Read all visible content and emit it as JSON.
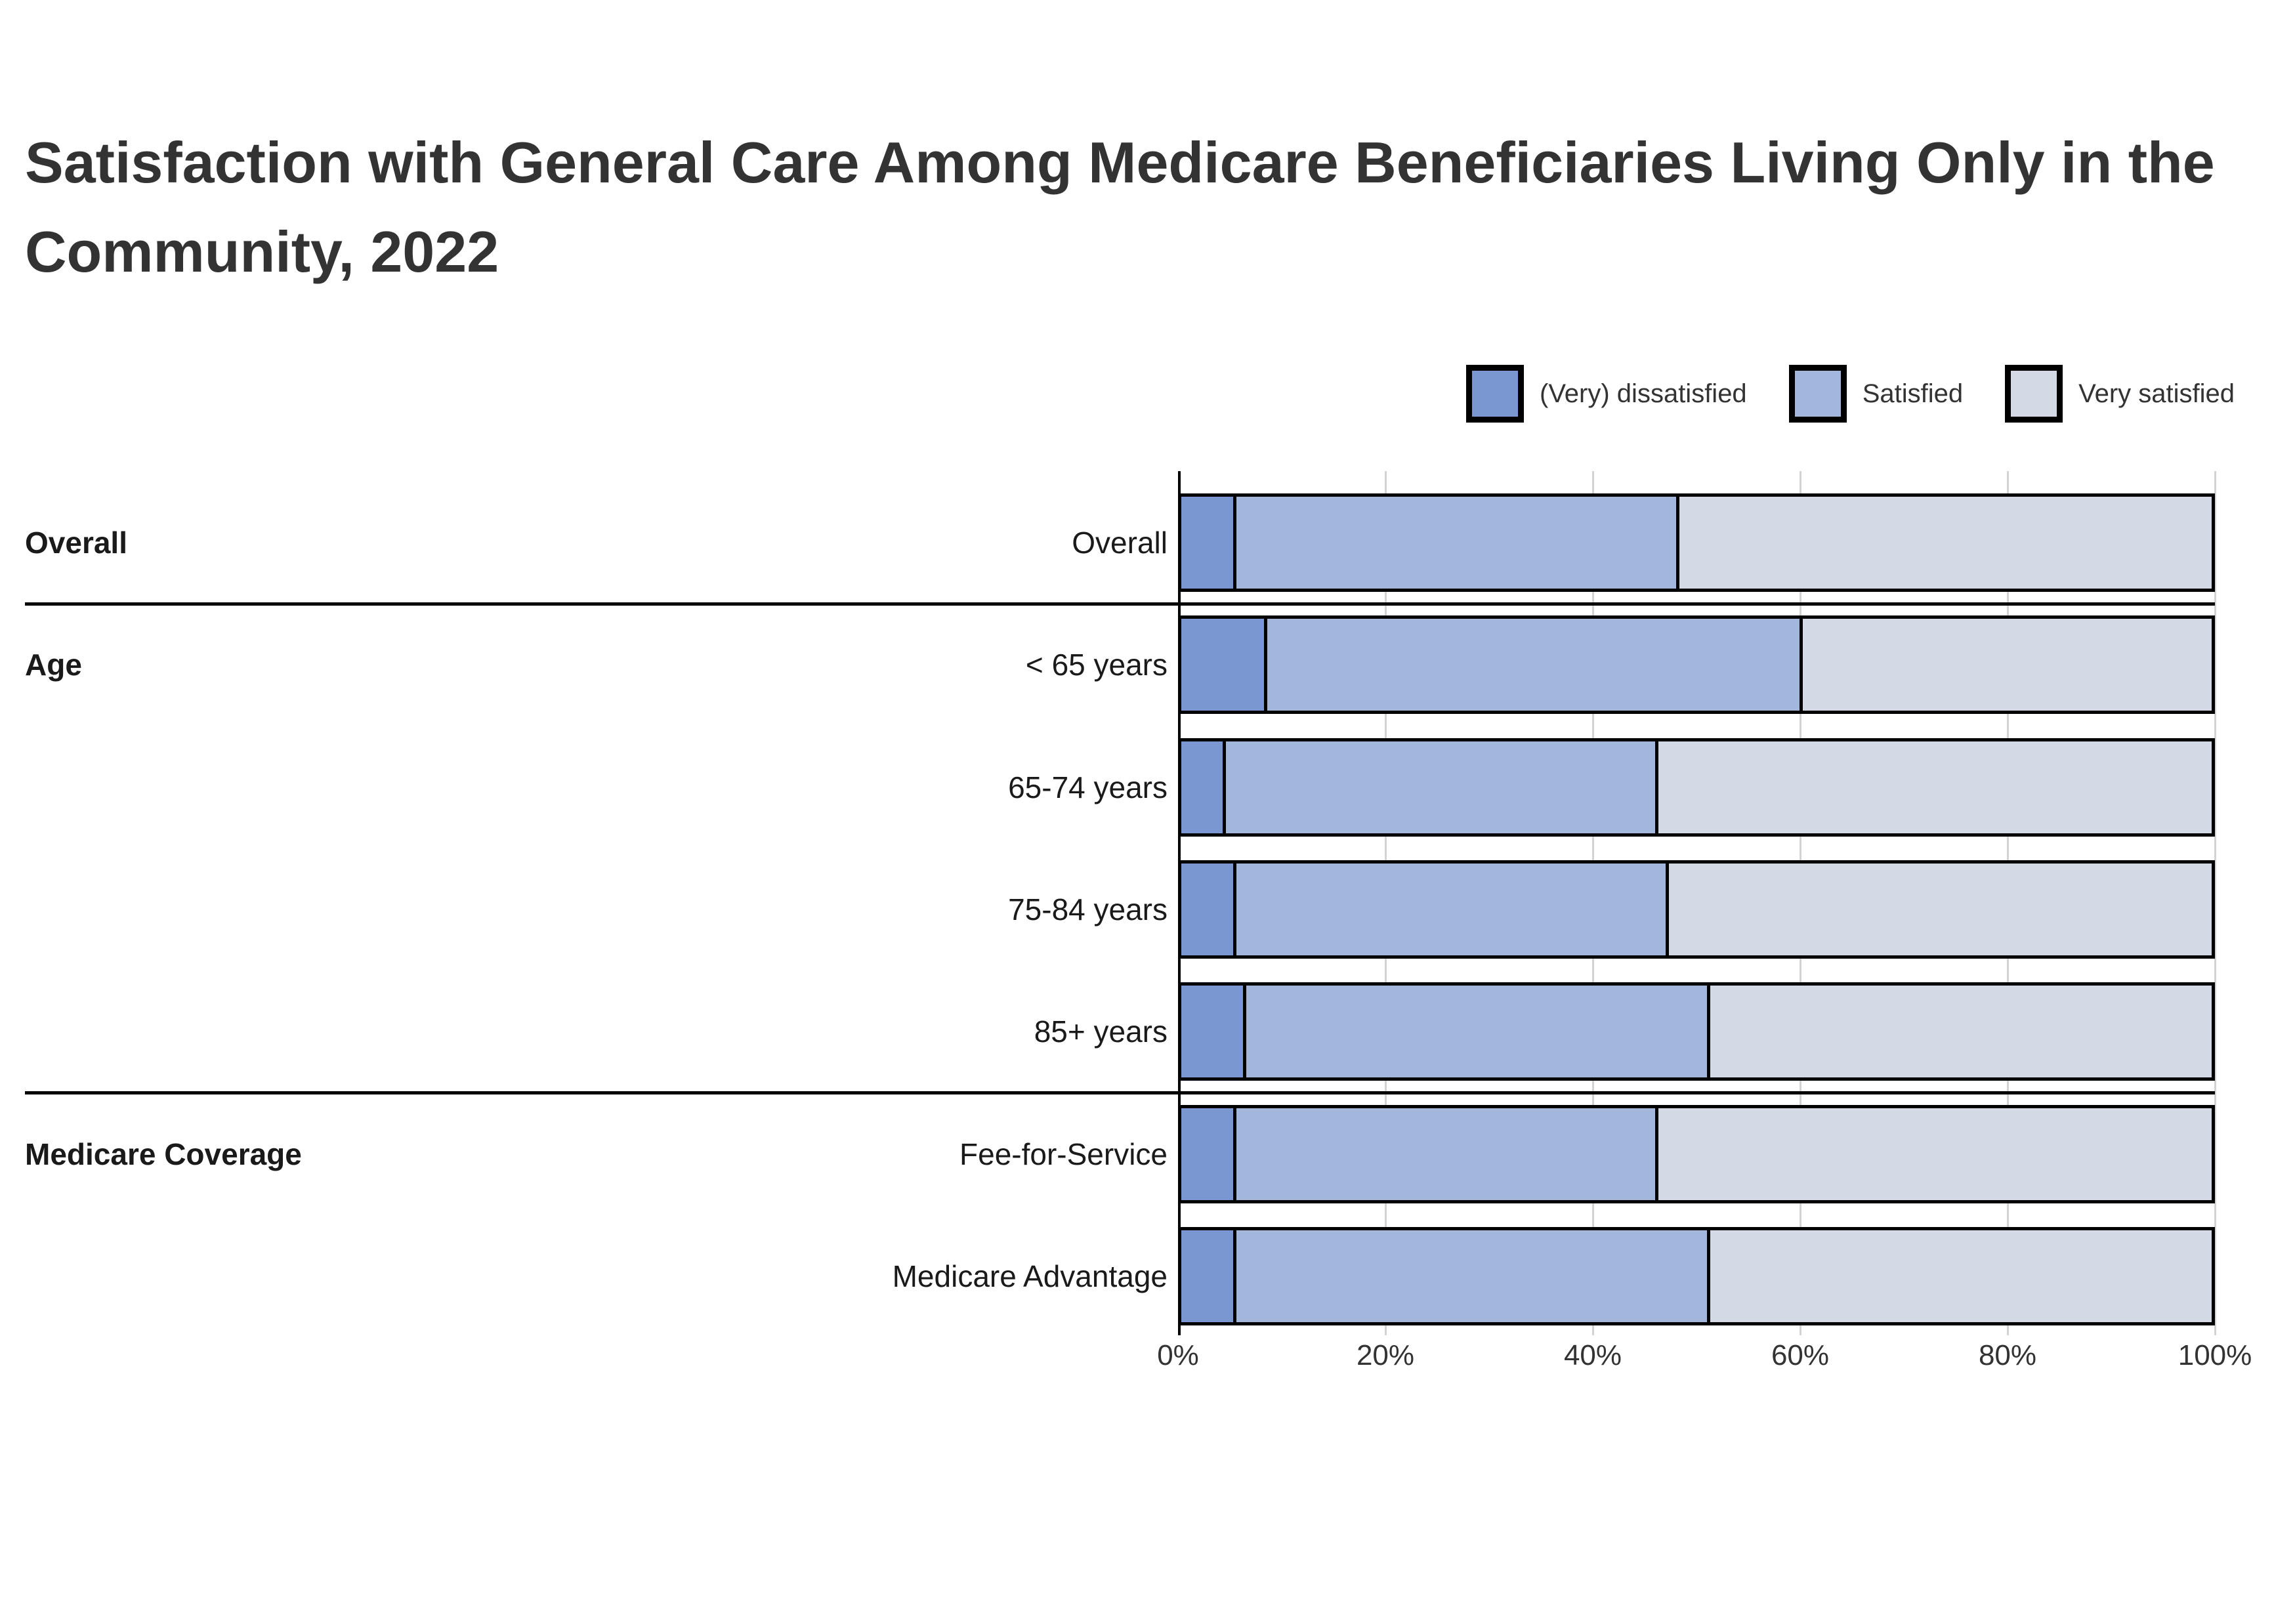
{
  "title": "Satisfaction with General Care Among Medicare Beneficiaries Living Only in the Community, 2022",
  "legend": [
    {
      "label": "(Very) dissatisfied",
      "color": "#7b97d2"
    },
    {
      "label": "Satisfied",
      "color": "#a3b6dc"
    },
    {
      "label": "Very satisfied",
      "color": "#d3d9e5"
    }
  ],
  "chart_data": {
    "type": "bar",
    "orientation": "horizontal",
    "stacked": true,
    "title": "Satisfaction with General Care Among Medicare Beneficiaries Living Only in the Community, 2022",
    "categories": [
      "Overall",
      "< 65 years",
      "65-74 years",
      "75-84 years",
      "85+ years",
      "Fee-for-Service",
      "Medicare Advantage"
    ],
    "groups": [
      {
        "label": "Overall",
        "first_row": 0,
        "last_row": 0
      },
      {
        "label": "Age",
        "first_row": 1,
        "last_row": 4
      },
      {
        "label": "Medicare Coverage",
        "first_row": 5,
        "last_row": 6
      }
    ],
    "series": [
      {
        "name": "(Very) dissatisfied",
        "color": "#7b97d2",
        "values": [
          5,
          8,
          4,
          5,
          6,
          5,
          5
        ]
      },
      {
        "name": "Satisfied",
        "color": "#a3b6dc",
        "values": [
          43,
          52,
          42,
          42,
          45,
          41,
          46
        ]
      },
      {
        "name": "Very satisfied",
        "color": "#d3d9e5",
        "values": [
          52,
          40,
          54,
          53,
          49,
          54,
          49
        ]
      }
    ],
    "x_ticks": [
      "0%",
      "20%",
      "40%",
      "60%",
      "80%",
      "100%"
    ],
    "xlim": [
      0,
      100
    ],
    "grid": true,
    "legend_position": "top-right"
  }
}
